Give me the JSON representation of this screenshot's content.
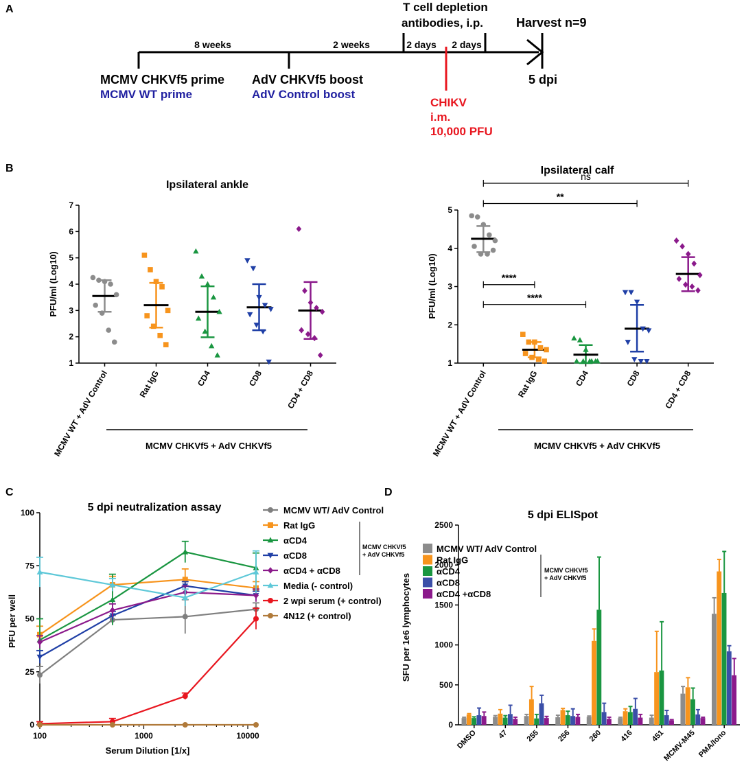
{
  "panels": {
    "a": {
      "letter": "A",
      "interval1": "8 weeks",
      "interval2": "2 weeks",
      "interval3": "2 days",
      "interval4": "2 days",
      "depletion_line1": "T cell depletion",
      "depletion_line2": "antibodies, i.p.",
      "harvest": "Harvest n=9",
      "prime_label": "MCMV CHKVf5 prime",
      "prime_control": "MCMV WT prime",
      "boost_label": "AdV CHKVf5 boost",
      "boost_control": "AdV Control boost",
      "challenge_line1": "CHIKV",
      "challenge_line2": "i.m.",
      "challenge_line3": "10,000 PFU",
      "dpi_label": "5 dpi"
    },
    "b": {
      "letter": "B"
    },
    "c": {
      "letter": "C"
    },
    "d": {
      "letter": "D"
    }
  },
  "chart_data": [
    {
      "type": "scatter",
      "title": "Ipsilateral ankle",
      "ylabel": "PFU/ml (Log10)",
      "ylim": [
        1,
        7
      ],
      "yticks": [
        "1",
        "2",
        "3",
        "4",
        "5",
        "6",
        "7"
      ],
      "group_label": "MCMV CHKVf5 + AdV CHKVf5",
      "groups": [
        {
          "label": "MCMV WT + AdV Control",
          "color": "#8c8c8c",
          "marker": "circle",
          "points": [
            4.25,
            4.15,
            4.1,
            4.0,
            3.6,
            3.2,
            2.9,
            2.25,
            1.8
          ],
          "mean": 3.55,
          "sd_low": 2.95,
          "sd_high": 4.15
        },
        {
          "label": "Rat IgG",
          "color": "#f7941d",
          "marker": "square",
          "points": [
            5.1,
            4.55,
            4.1,
            3.9,
            3.0,
            2.8,
            2.4,
            2.05,
            1.7
          ],
          "mean": 3.2,
          "sd_low": 2.35,
          "sd_high": 4.05
        },
        {
          "label": "CD4",
          "color": "#1a9641",
          "marker": "triangle",
          "points": [
            5.25,
            4.3,
            4.0,
            3.5,
            2.95,
            2.7,
            2.2,
            1.65,
            1.3
          ],
          "mean": 2.95,
          "sd_low": 1.98,
          "sd_high": 3.92
        },
        {
          "label": "CD8",
          "color": "#1f3fa6",
          "marker": "triangle-down",
          "points": [
            4.9,
            4.6,
            3.5,
            3.2,
            3.05,
            2.85,
            2.45,
            2.2,
            1.05
          ],
          "mean": 3.12,
          "sd_low": 2.25,
          "sd_high": 4.0
        },
        {
          "label": "CD4 + CD8",
          "color": "#8b1a8b",
          "marker": "diamond",
          "points": [
            6.1,
            3.75,
            3.3,
            3.1,
            2.95,
            2.25,
            2.1,
            1.95,
            1.3
          ],
          "mean": 3.0,
          "sd_low": 1.92,
          "sd_high": 4.08
        }
      ],
      "significance": []
    },
    {
      "type": "scatter",
      "title": "Ipsilateral calf",
      "ylabel": "PFU/ml (Log10)",
      "ylim": [
        1,
        5
      ],
      "yticks": [
        "1",
        "2",
        "3",
        "4",
        "5"
      ],
      "group_label": "MCMV CHKVf5 + AdV CHKVf5",
      "groups": [
        {
          "label": "MCMV WT + AdV Control",
          "color": "#8c8c8c",
          "marker": "circle",
          "points": [
            4.85,
            4.82,
            4.62,
            4.35,
            4.2,
            4.05,
            3.85,
            3.85,
            3.95
          ],
          "mean": 4.25,
          "sd_low": 3.9,
          "sd_high": 4.58
        },
        {
          "label": "Rat IgG",
          "color": "#f7941d",
          "marker": "square",
          "points": [
            1.75,
            1.55,
            1.55,
            1.4,
            1.35,
            1.25,
            1.15,
            1.1,
            1.05
          ],
          "mean": 1.35,
          "sd_low": 1.15,
          "sd_high": 1.55
        },
        {
          "label": "CD4",
          "color": "#1a9641",
          "marker": "triangle",
          "points": [
            1.65,
            1.6,
            1.35,
            1.05,
            1.05,
            1.05,
            1.05,
            1.05,
            1.05
          ],
          "mean": 1.22,
          "sd_low": 1.0,
          "sd_high": 1.47
        },
        {
          "label": "CD8",
          "color": "#1f3fa6",
          "marker": "triangle-down",
          "points": [
            2.85,
            2.85,
            2.6,
            1.9,
            1.85,
            1.55,
            1.1,
            1.05,
            1.05
          ],
          "mean": 1.9,
          "sd_low": 1.3,
          "sd_high": 2.52
        },
        {
          "label": "CD4 + CD8",
          "color": "#8b1a8b",
          "marker": "diamond",
          "points": [
            4.2,
            4.05,
            3.85,
            3.6,
            3.3,
            3.2,
            3.05,
            3.0,
            2.9
          ],
          "mean": 3.33,
          "sd_low": 2.88,
          "sd_high": 3.77
        }
      ],
      "significance": [
        {
          "from": 0,
          "to": 4,
          "label": "ns",
          "y": 5.7
        },
        {
          "from": 0,
          "to": 3,
          "label": "**",
          "y": 5.17
        },
        {
          "from": 0,
          "to": 1,
          "label": "****",
          "y": 3.05
        },
        {
          "from": 0,
          "to": 2,
          "label": "****",
          "y": 2.53
        }
      ]
    },
    {
      "type": "line",
      "title": "5 dpi neutralization assay",
      "xlabel": "Serum Dilution [1/x]",
      "ylabel": "PFU per well",
      "xscale": "log",
      "xlim": [
        100,
        12000
      ],
      "ylim": [
        0,
        100
      ],
      "x": [
        100,
        500,
        2500,
        12000
      ],
      "xticks": [
        {
          "v": 100,
          "t": "100"
        },
        {
          "v": 1000,
          "t": "1000"
        },
        {
          "v": 10000,
          "t": "10000"
        }
      ],
      "yticks": [
        "0",
        "25",
        "50",
        "75",
        "100"
      ],
      "bracket_line1": "MCMV CHKVf5",
      "bracket_line2": "+ AdV CHKVf5",
      "series": [
        {
          "name": "MCMV WT/ AdV Control",
          "color": "#7f7f7f",
          "marker": "circle",
          "values": [
            23.5,
            49.5,
            51,
            54.5
          ],
          "err": [
            4,
            2,
            8,
            3
          ]
        },
        {
          "name": "Rat IgG",
          "color": "#f7941d",
          "marker": "square",
          "values": [
            42.5,
            66,
            68.5,
            64.5
          ],
          "err": [
            4,
            4,
            5,
            3
          ]
        },
        {
          "name": "αCD4",
          "color": "#1a9641",
          "marker": "triangle",
          "values": [
            40,
            59,
            81.5,
            74
          ],
          "err": [
            10,
            12,
            5,
            7
          ]
        },
        {
          "name": "αCD8",
          "color": "#1f3fa6",
          "marker": "triangle-down",
          "values": [
            32,
            51.5,
            65.5,
            61
          ],
          "err": [
            3,
            2,
            2,
            2
          ]
        },
        {
          "name": "αCD4 + αCD8",
          "color": "#8b1a8b",
          "marker": "diamond",
          "values": [
            39,
            54,
            62.5,
            61
          ],
          "err": [
            3,
            3,
            3,
            3
          ]
        },
        {
          "name": "Media (- control)",
          "color": "#5ec8d8",
          "marker": "triangle",
          "values": [
            72,
            66,
            60,
            72
          ],
          "err": [
            7,
            3,
            4,
            10
          ]
        },
        {
          "name": "2 wpi serum (+ control)",
          "color": "#e8161f",
          "marker": "circle",
          "values": [
            0.5,
            1.5,
            13.5,
            50
          ],
          "err": [
            1,
            1.5,
            1.5,
            5
          ]
        },
        {
          "name": "4N12 (+ control)",
          "color": "#b07a3a",
          "marker": "circle",
          "values": [
            0,
            0,
            0,
            0
          ],
          "err": [
            0,
            0,
            0,
            0
          ]
        }
      ]
    },
    {
      "type": "bar",
      "title": "5 dpi ELISpot",
      "ylabel": "SFU per 1e6 lymphocytes",
      "ylim": [
        0,
        2500
      ],
      "yticks": [
        "0",
        "500",
        "1000",
        "1500",
        "2000",
        "2500"
      ],
      "bracket_line1": "MCMV CHKVf5",
      "bracket_line2": "+ AdV CHKVf5",
      "categories": [
        "DMSO",
        "47",
        "255",
        "256",
        "260",
        "416",
        "451",
        "MCMV-M45",
        "PMA/Iono"
      ],
      "series": [
        {
          "name": "MCMV WT/ AdV Control",
          "color": "#8c8c8c",
          "values": [
            85,
            100,
            110,
            95,
            100,
            85,
            90,
            390,
            1390
          ],
          "err": [
            10,
            15,
            20,
            25,
            10,
            10,
            30,
            90,
            200
          ]
        },
        {
          "name": "Rat IgG",
          "color": "#f7941d",
          "values": [
            130,
            140,
            320,
            185,
            1050,
            170,
            660,
            470,
            1920
          ],
          "err": [
            10,
            50,
            160,
            20,
            150,
            30,
            510,
            120,
            150
          ]
        },
        {
          "name": "αCD4",
          "color": "#1a9641",
          "values": [
            85,
            90,
            80,
            120,
            1440,
            160,
            680,
            320,
            1650
          ],
          "err": [
            15,
            25,
            50,
            50,
            660,
            70,
            610,
            140,
            520
          ]
        },
        {
          "name": "αCD8",
          "color": "#3b4fa8",
          "values": [
            120,
            135,
            270,
            110,
            160,
            200,
            120,
            130,
            920
          ],
          "err": [
            90,
            110,
            100,
            90,
            110,
            130,
            60,
            60,
            70
          ]
        },
        {
          "name": "αCD4 +αCD8",
          "color": "#8b1a8b",
          "values": [
            110,
            75,
            85,
            100,
            75,
            90,
            55,
            85,
            620
          ],
          "err": [
            50,
            20,
            20,
            30,
            20,
            40,
            10,
            10,
            210
          ]
        }
      ]
    }
  ]
}
